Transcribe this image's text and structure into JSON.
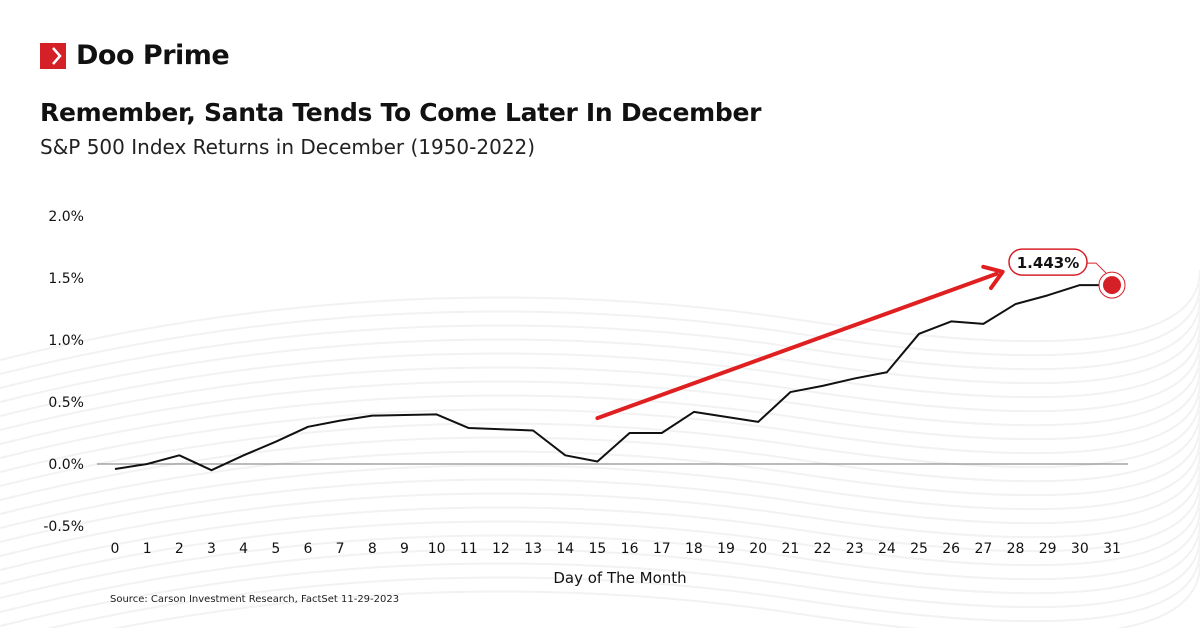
{
  "brand": {
    "name": "Doo Prime",
    "accent": "#d62027"
  },
  "header": {
    "title": "Remember, Santa Tends To Come Later In December",
    "subtitle": "S&P 500 Index Returns in December (1950-2022)"
  },
  "source": "Source: Carson Investment Research, FactSet 11-29-2023",
  "chart_data": {
    "type": "line",
    "title": "Remember, Santa Tends To Come Later In December",
    "subtitle": "S&P 500 Index Returns in December (1950-2022)",
    "xlabel": "Day of The Month",
    "ylabel": "",
    "x": [
      0,
      1,
      2,
      3,
      4,
      5,
      6,
      7,
      8,
      9,
      10,
      11,
      12,
      13,
      14,
      15,
      16,
      17,
      18,
      19,
      20,
      21,
      22,
      23,
      24,
      25,
      26,
      27,
      28,
      29,
      30,
      31
    ],
    "values": [
      -0.04,
      0.0,
      0.07,
      -0.05,
      0.07,
      0.18,
      0.3,
      0.35,
      0.39,
      0.395,
      0.4,
      0.29,
      0.28,
      0.27,
      0.07,
      0.02,
      0.25,
      0.25,
      0.42,
      0.38,
      0.34,
      0.58,
      0.63,
      0.69,
      0.74,
      1.05,
      1.15,
      1.13,
      1.29,
      1.36,
      1.443,
      1.443
    ],
    "xlim": [
      0,
      31
    ],
    "ylim": [
      -0.5,
      2.0
    ],
    "yticks": [
      -0.5,
      0.0,
      0.5,
      1.0,
      1.5,
      2.0
    ],
    "ytick_labels": [
      "-0.5%",
      "0.0%",
      "0.5%",
      "1.0%",
      "1.5%",
      "2.0%"
    ],
    "xtick_labels": [
      "0",
      "1",
      "2",
      "3",
      "4",
      "5",
      "6",
      "7",
      "8",
      "9",
      "10",
      "11",
      "12",
      "13",
      "14",
      "15",
      "16",
      "17",
      "18",
      "19",
      "20",
      "21",
      "22",
      "23",
      "24",
      "25",
      "26",
      "27",
      "28",
      "29",
      "30",
      "31"
    ],
    "grid": false,
    "line_color": "#111111",
    "annotation": {
      "label": "1.443%",
      "x": 31,
      "y": 1.443,
      "color": "#d62027"
    },
    "trend_arrow": {
      "from": [
        15,
        0.37
      ],
      "to": [
        27.6,
        1.55
      ],
      "color": "#e02020"
    }
  }
}
